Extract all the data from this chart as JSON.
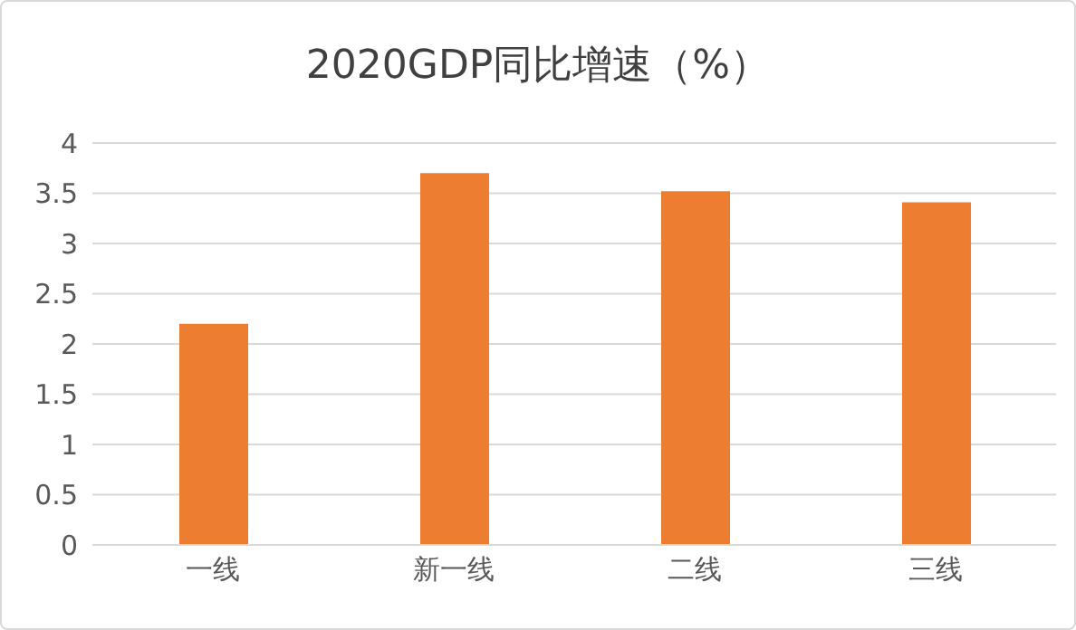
{
  "chart_data": {
    "type": "bar",
    "title": "2020GDP同比增速（%）",
    "categories": [
      "一线",
      "新一线",
      "二线",
      "三线"
    ],
    "values": [
      2.2,
      3.7,
      3.52,
      3.41
    ],
    "color": "#ed7d31",
    "ylim": [
      0,
      4
    ],
    "yticks": [
      0,
      0.5,
      1,
      1.5,
      2,
      2.5,
      3,
      3.5,
      4
    ],
    "grid": "y"
  }
}
